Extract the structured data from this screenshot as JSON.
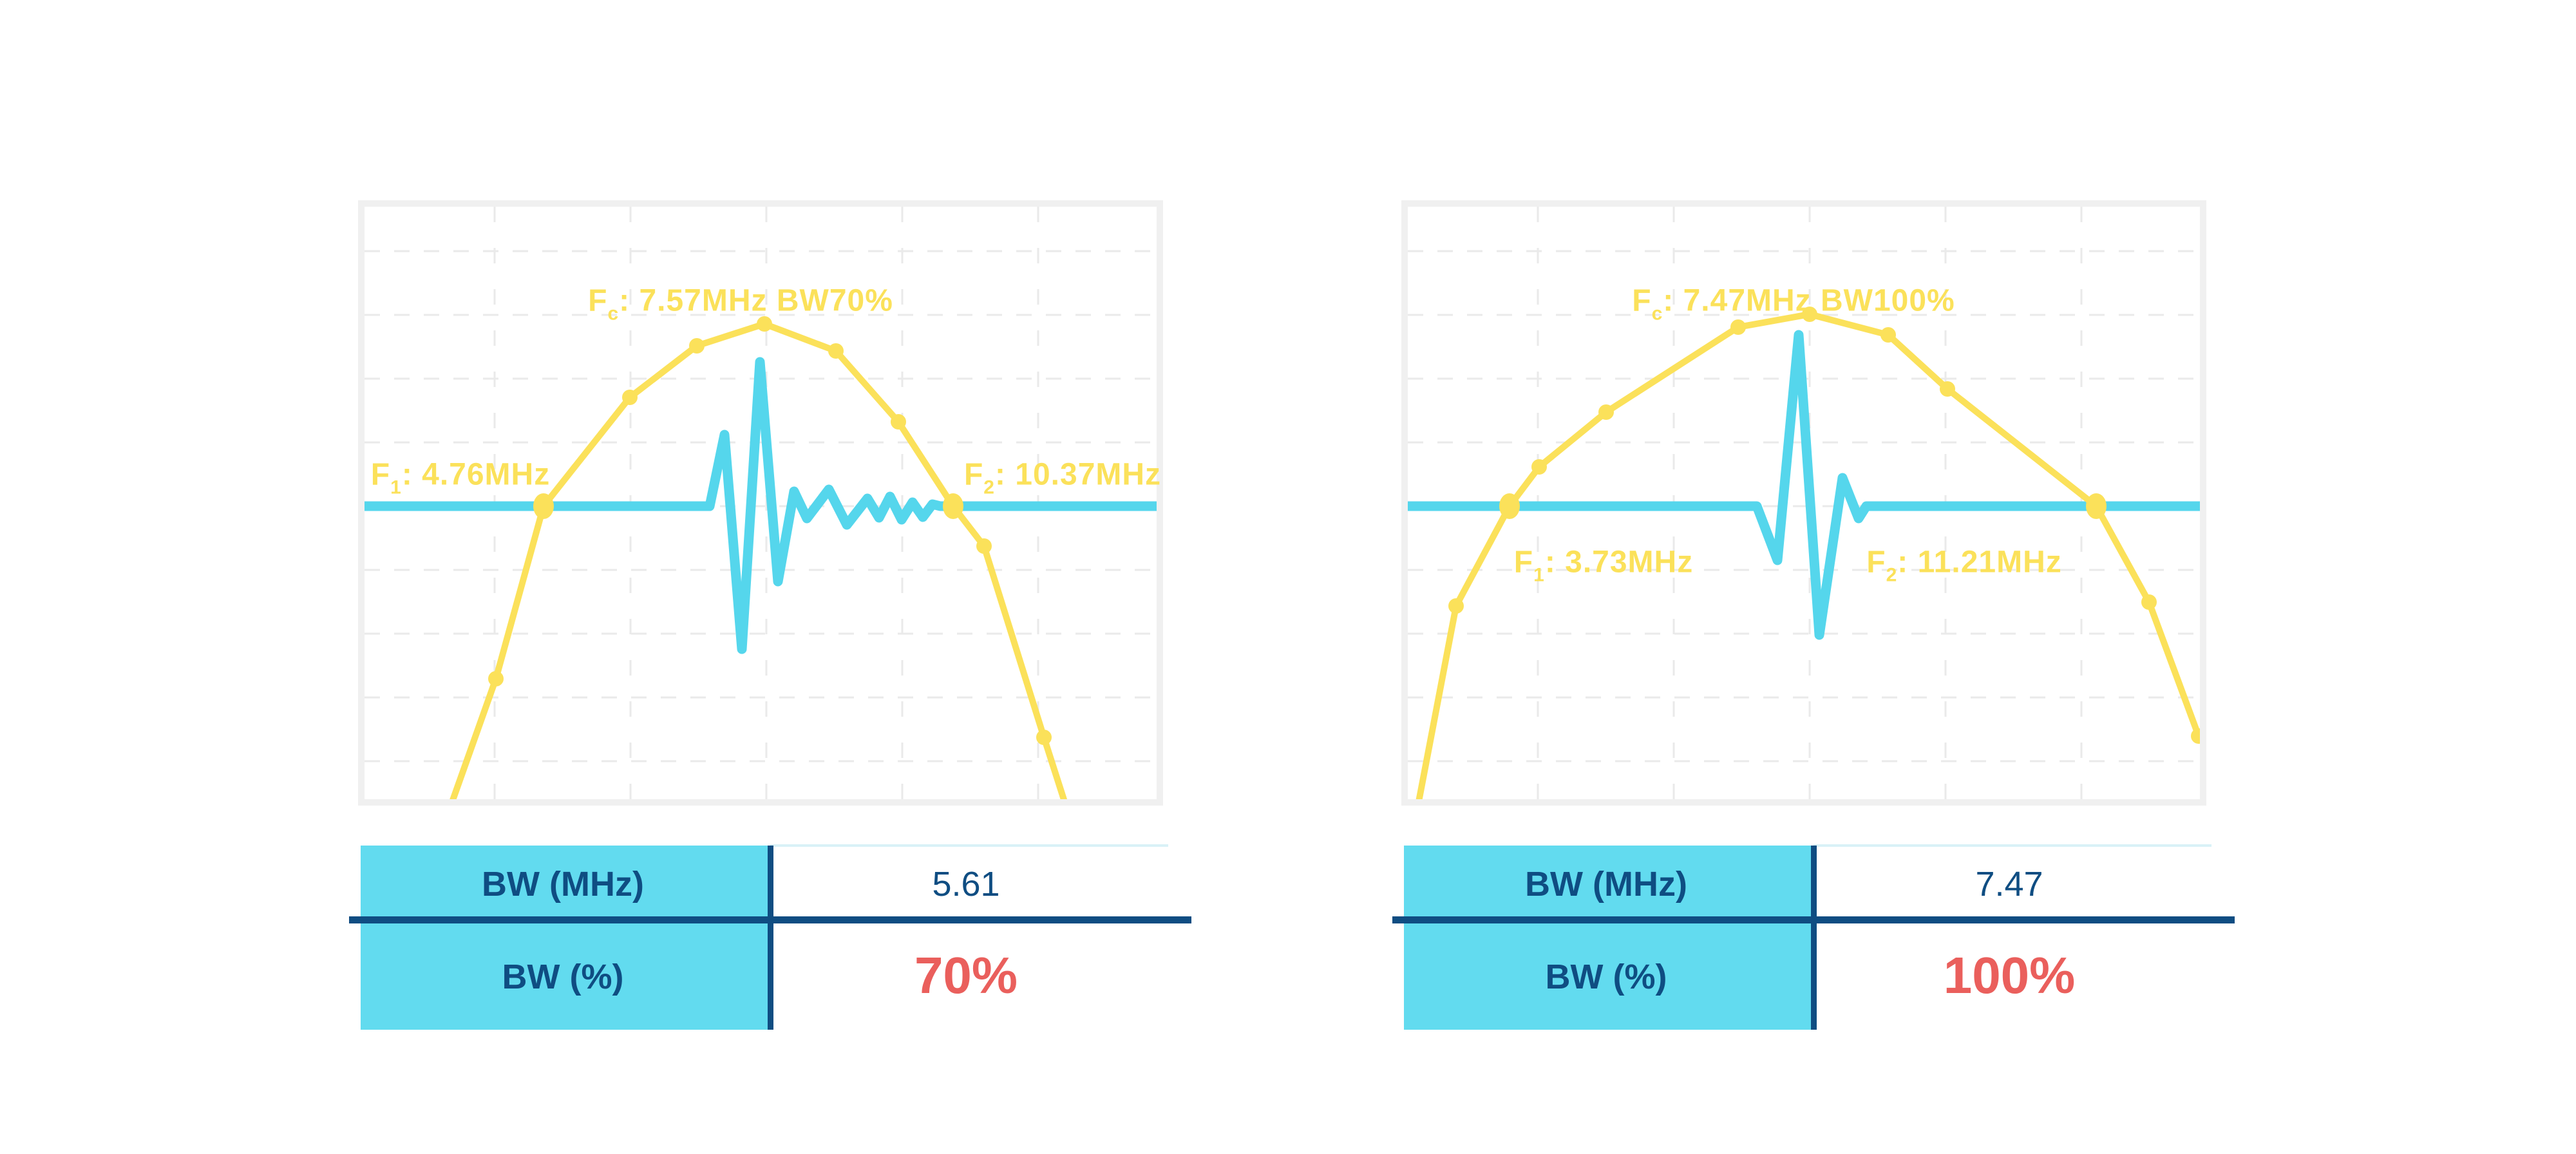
{
  "colors": {
    "spectrum_yellow": "#fbe15a",
    "pulse_cyan": "#55d6ec",
    "table_cyan": "#62dbef",
    "navy": "#0f4d82",
    "red": "#ea5f5c",
    "chart_frame": "#f0f0f0",
    "grid": "#eaeaea",
    "pale_rule": "#d9f1f7"
  },
  "chart_data": [
    {
      "type": "line",
      "title": "Fc: 7.57MHz BW70%",
      "annotations": {
        "fc": {
          "prefix": "F",
          "sub": "c",
          "rest": ": 7.57MHz BW70%"
        },
        "f1": {
          "prefix": "F",
          "sub": "1",
          "rest": ": 4.76MHz"
        },
        "f2": {
          "prefix": "F",
          "sub": "2",
          "rest": ": 10.37MHz"
        }
      },
      "values": {
        "fc_mhz": 7.57,
        "f1_mhz": 4.76,
        "f2_mhz": 10.37,
        "bw_mhz": 5.61,
        "bw_pct": 70
      },
      "label_pos": {
        "fc": [
          584,
          151
        ],
        "f1": [
          149,
          421
        ],
        "f2": [
          1084,
          421
        ]
      },
      "grid": {
        "vlines": [
          202,
          413,
          624,
          835,
          1046
        ],
        "hlines": [
          69,
          168,
          267,
          366,
          465,
          564,
          663,
          762,
          861
        ]
      },
      "series": [
        {
          "name": "frequency-spectrum",
          "points": [
            [
              134,
              930
            ],
            [
              204,
              733
            ],
            [
              278,
              465
            ],
            [
              412,
              296
            ],
            [
              516,
              216
            ],
            [
              621,
              182
            ],
            [
              732,
              224
            ],
            [
              829,
              334
            ],
            [
              914,
              465
            ],
            [
              962,
              527
            ],
            [
              1055,
              824
            ],
            [
              1089,
              930
            ]
          ],
          "markers": [
            [
              204,
              733
            ],
            [
              412,
              296
            ],
            [
              516,
              216
            ],
            [
              621,
              182
            ],
            [
              732,
              224
            ],
            [
              829,
              334
            ],
            [
              962,
              527
            ],
            [
              1055,
              824
            ]
          ],
          "big_markers": [
            [
              278,
              465
            ],
            [
              914,
              465
            ]
          ],
          "marker_mhz": [
            4.11,
            5.94,
            6.86,
            7.57,
            8.76,
            9.62,
            10.79,
            11.61
          ]
        },
        {
          "name": "pulse-waveform",
          "points": [
            [
              0,
              465
            ],
            [
              536,
              465
            ],
            [
              559,
              354
            ],
            [
              586,
              687
            ],
            [
              614,
              241
            ],
            [
              642,
              582
            ],
            [
              667,
              442
            ],
            [
              687,
              484
            ],
            [
              721,
              439
            ],
            [
              749,
              494
            ],
            [
              781,
              453
            ],
            [
              799,
              483
            ],
            [
              816,
              450
            ],
            [
              834,
              486
            ],
            [
              851,
              459
            ],
            [
              867,
              482
            ],
            [
              882,
              462
            ],
            [
              894,
              465
            ],
            [
              1230,
              465
            ]
          ]
        }
      ],
      "table": {
        "rows": [
          {
            "label": "BW (MHz)",
            "value": "5.61",
            "style": "navy"
          },
          {
            "label": "BW (%)",
            "value": "70%",
            "style": "red"
          }
        ]
      }
    },
    {
      "type": "line",
      "title": "Fc: 7.47MHz BW100%",
      "annotations": {
        "fc": {
          "prefix": "F",
          "sub": "c",
          "rest": ": 7.47MHz BW100%"
        },
        "f1": {
          "prefix": "F",
          "sub": "1",
          "rest": ": 3.73MHz"
        },
        "f2": {
          "prefix": "F",
          "sub": "2",
          "rest": ": 11.21MHz"
        }
      },
      "values": {
        "fc_mhz": 7.47,
        "f1_mhz": 3.73,
        "f2_mhz": 11.21,
        "bw_mhz": 7.47,
        "bw_pct": 100
      },
      "label_pos": {
        "fc": [
          599,
          151
        ],
        "f1": [
          304,
          557
        ],
        "f2": [
          864,
          557
        ]
      },
      "grid": {
        "vlines": [
          202,
          413,
          624,
          835,
          1046
        ],
        "hlines": [
          69,
          168,
          267,
          366,
          465,
          564,
          663,
          762,
          861
        ]
      },
      "series": [
        {
          "name": "frequency-spectrum",
          "points": [
            [
              16,
              929
            ],
            [
              75,
              620
            ],
            [
              158,
              465
            ],
            [
              204,
              404
            ],
            [
              308,
              319
            ],
            [
              513,
              187
            ],
            [
              624,
              167
            ],
            [
              746,
              199
            ],
            [
              838,
              283
            ],
            [
              1069,
              465
            ],
            [
              1151,
              614
            ],
            [
              1228,
              822
            ]
          ],
          "markers": [
            [
              75,
              620
            ],
            [
              204,
              404
            ],
            [
              308,
              319
            ],
            [
              513,
              187
            ],
            [
              624,
              167
            ],
            [
              746,
              199
            ],
            [
              838,
              283
            ],
            [
              1151,
              614
            ],
            [
              1228,
              822
            ]
          ],
          "big_markers": [
            [
              158,
              465
            ],
            [
              1069,
              465
            ]
          ],
          "marker_mhz": [
            3.05,
            4.11,
            4.96,
            6.64,
            7.47,
            8.56,
            9.31,
            11.88,
            12.56
          ]
        },
        {
          "name": "pulse-waveform",
          "points": [
            [
              0,
              465
            ],
            [
              542,
              465
            ],
            [
              574,
              549
            ],
            [
              607,
              199
            ],
            [
              639,
              665
            ],
            [
              675,
              421
            ],
            [
              700,
              484
            ],
            [
              712,
              465
            ],
            [
              1230,
              465
            ]
          ]
        }
      ],
      "table": {
        "rows": [
          {
            "label": "BW (MHz)",
            "value": "7.47",
            "style": "navy"
          },
          {
            "label": "BW (%)",
            "value": "100%",
            "style": "red"
          }
        ]
      }
    }
  ],
  "layout_note": "two ultrasound transducer bandwidth figures: frequency spectrum (yellow) with pulse echo waveform (cyan) and bandwidth summary table"
}
